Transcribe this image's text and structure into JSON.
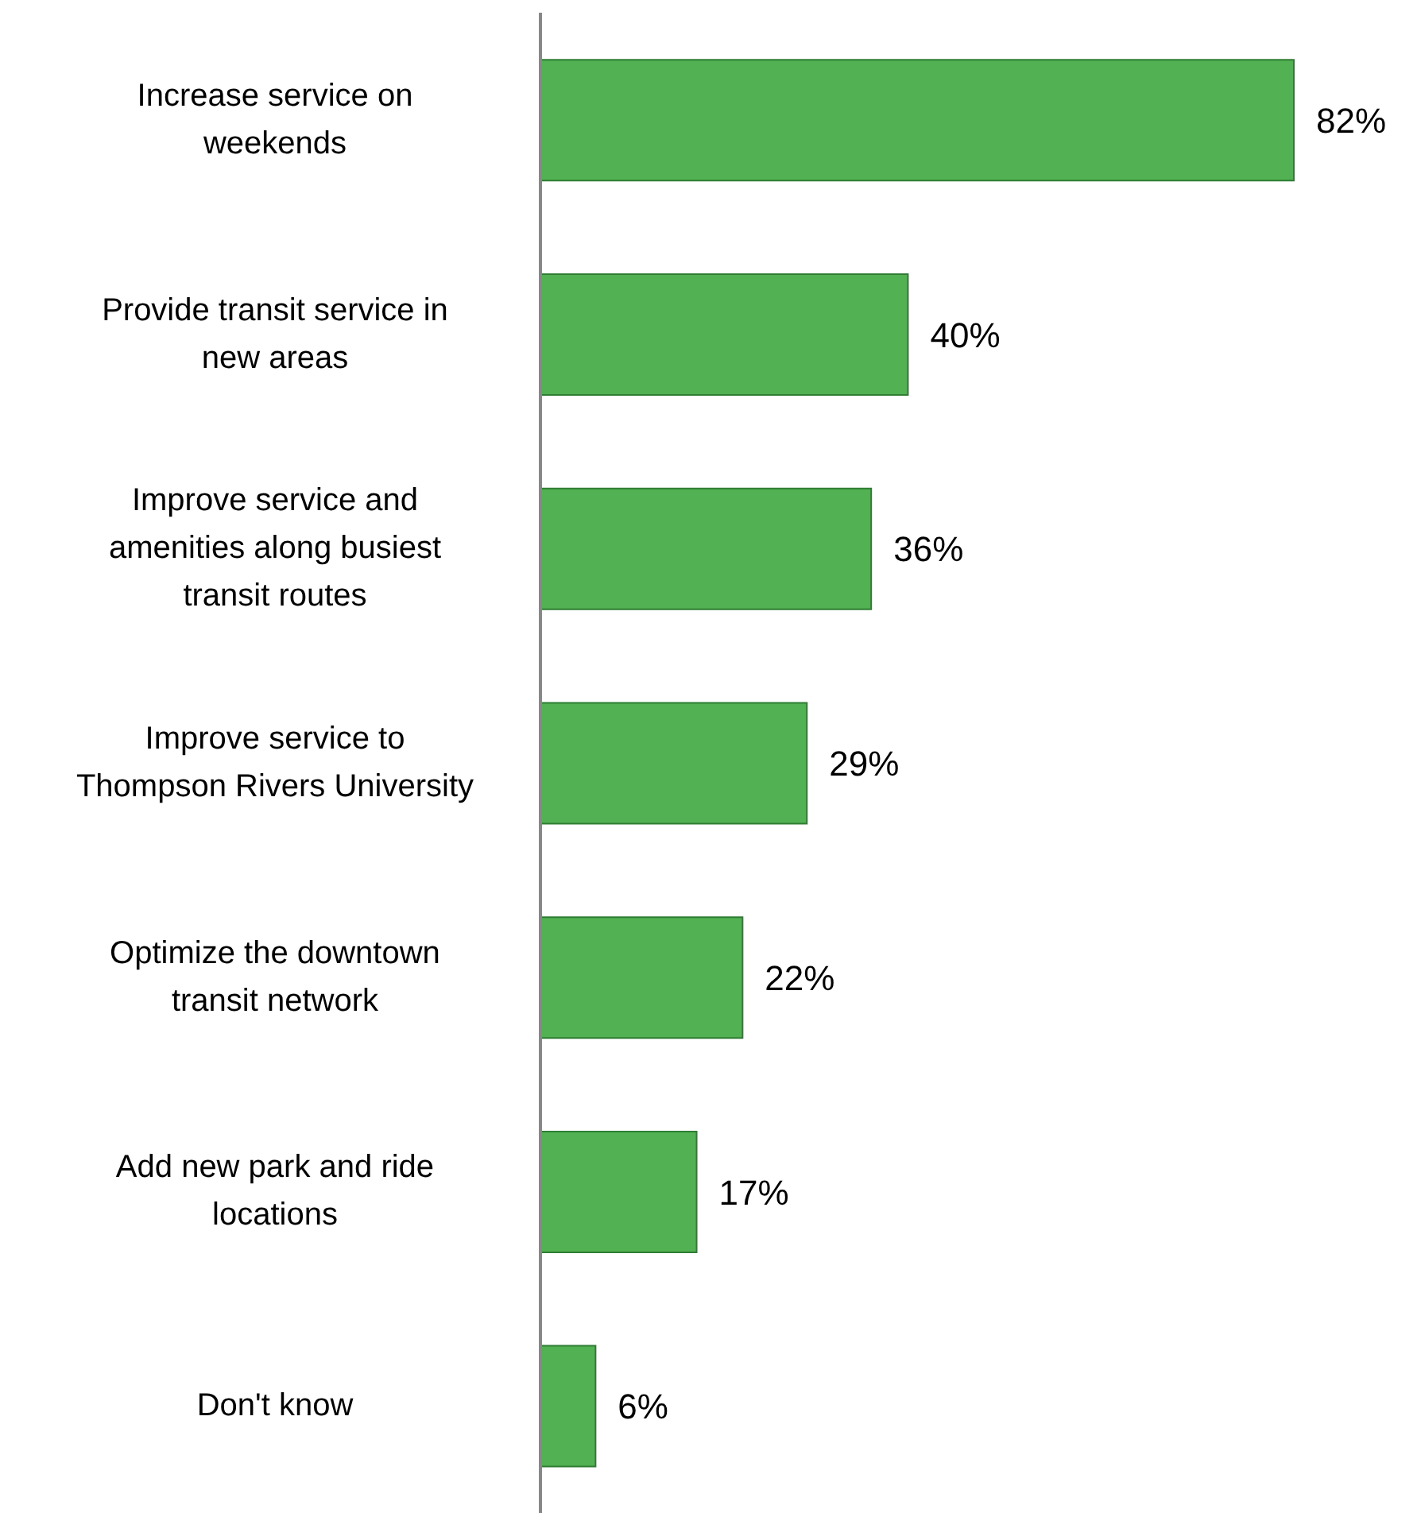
{
  "chart_data": {
    "type": "bar",
    "orientation": "horizontal",
    "categories": [
      "Increase service on weekends",
      "Provide transit service in new areas",
      "Improve service and amenities along busiest transit routes",
      "Improve service to Thompson Rivers University",
      "Optimize the downtown transit network",
      "Add new park and ride locations",
      "Don't know"
    ],
    "values": [
      82,
      40,
      36,
      29,
      22,
      17,
      6
    ],
    "value_labels": [
      "82%",
      "40%",
      "36%",
      "29%",
      "22%",
      "17%",
      "6%"
    ],
    "color": "#52b152",
    "grid": false,
    "legend": false
  }
}
